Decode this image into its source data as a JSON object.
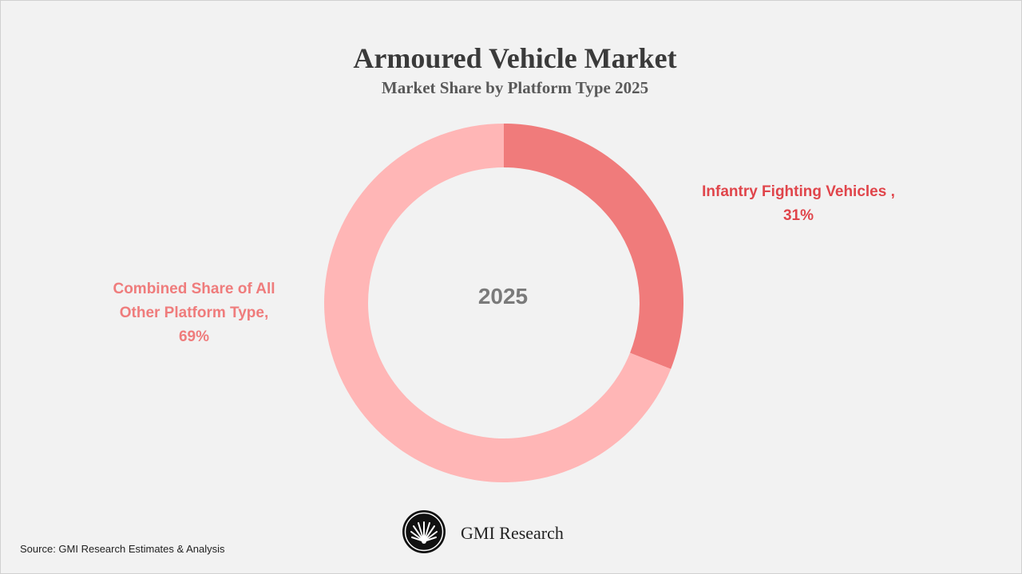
{
  "chart_data": {
    "type": "pie",
    "donut": true,
    "title": "Armoured Vehicle Market",
    "subtitle": "Market Share by Platform Type 2025",
    "center_label": "2025",
    "start_angle_deg": 0,
    "slices": [
      {
        "name": "Infantry Fighting Vehicles",
        "value": 31,
        "label_line1": "Infantry Fighting Vehicles ,",
        "label_line2": "31%",
        "color": "#f07b7b"
      },
      {
        "name": "Combined Share of All Other Platform Type",
        "value": 69,
        "label_line1": "Combined Share of All",
        "label_line2": "Other Platform Type,",
        "label_line3": "69%",
        "color": "#ffb6b6"
      }
    ]
  },
  "brand": {
    "name": "GMI Research",
    "logo_icon": "fan-leaf-logo-icon"
  },
  "footer": {
    "source": "Source: GMI Research Estimates & Analysis"
  },
  "colors": {
    "background": "#f2f2f2",
    "ifv_label": "#e0454b",
    "other_label": "#ef7c7c"
  }
}
